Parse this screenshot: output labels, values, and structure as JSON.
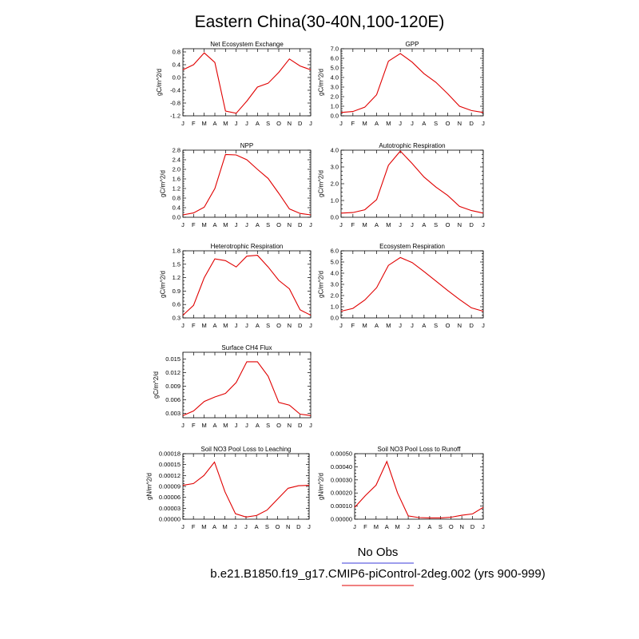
{
  "title": "Eastern China(30-40N,100-120E)",
  "legend": [
    {
      "label": "No Obs",
      "color": "#3b3bd8"
    },
    {
      "label": "b.e21.B1850.f19_g17.CMIP6-piControl-2deg.002 (yrs 900-999)",
      "color": "#e00000"
    }
  ],
  "chart_data": [
    {
      "type": "line",
      "title": "Net Ecosystem Exchange",
      "ylabel": "gC/m^2/d",
      "ylim": [
        -1.2,
        0.9
      ],
      "yticks": [
        "-1.2",
        "-0.8",
        "-0.4",
        "0.0",
        "0.4",
        "0.8"
      ],
      "ytick_values": [
        -1.2,
        -0.8,
        -0.4,
        0.0,
        0.4,
        0.8
      ],
      "categories": [
        "J",
        "F",
        "M",
        "A",
        "M",
        "J",
        "J",
        "A",
        "S",
        "O",
        "N",
        "D",
        "J"
      ],
      "values": [
        0.24,
        0.4,
        0.77,
        0.47,
        -1.05,
        -1.12,
        -0.74,
        -0.3,
        -0.18,
        0.16,
        0.58,
        0.36,
        0.24
      ],
      "color": "#e00000"
    },
    {
      "type": "line",
      "title": "GPP",
      "ylabel": "gC/m^2/d",
      "ylim": [
        0.0,
        7.0
      ],
      "yticks": [
        "0.0",
        "1.0",
        "2.0",
        "3.0",
        "4.0",
        "5.0",
        "6.0",
        "7.0"
      ],
      "ytick_values": [
        0,
        1,
        2,
        3,
        4,
        5,
        6,
        7
      ],
      "categories": [
        "J",
        "F",
        "M",
        "A",
        "M",
        "J",
        "J",
        "A",
        "S",
        "O",
        "N",
        "D",
        "J"
      ],
      "values": [
        0.35,
        0.45,
        0.9,
        2.2,
        5.7,
        6.5,
        5.6,
        4.4,
        3.5,
        2.3,
        1.0,
        0.55,
        0.35
      ],
      "color": "#e00000"
    },
    {
      "type": "line",
      "title": "NPP",
      "ylabel": "gC/m^2/d",
      "ylim": [
        0.0,
        2.8
      ],
      "yticks": [
        "0.0",
        "0.4",
        "0.8",
        "1.2",
        "1.6",
        "2.0",
        "2.4",
        "2.8"
      ],
      "ytick_values": [
        0,
        0.4,
        0.8,
        1.2,
        1.6,
        2.0,
        2.4,
        2.8
      ],
      "categories": [
        "J",
        "F",
        "M",
        "A",
        "M",
        "J",
        "J",
        "A",
        "S",
        "O",
        "N",
        "D",
        "J"
      ],
      "values": [
        0.1,
        0.18,
        0.42,
        1.2,
        2.62,
        2.6,
        2.4,
        2.0,
        1.62,
        1.0,
        0.35,
        0.16,
        0.1
      ],
      "color": "#e00000"
    },
    {
      "type": "line",
      "title": "Autotrophic Respiration",
      "ylabel": "gC/m^2/d",
      "ylim": [
        0.0,
        4.0
      ],
      "yticks": [
        "0.0",
        "1.0",
        "2.0",
        "3.0",
        "4.0"
      ],
      "ytick_values": [
        0,
        1,
        2,
        3,
        4
      ],
      "categories": [
        "J",
        "F",
        "M",
        "A",
        "M",
        "J",
        "J",
        "A",
        "S",
        "O",
        "N",
        "D",
        "J"
      ],
      "values": [
        0.25,
        0.28,
        0.45,
        1.05,
        3.1,
        3.95,
        3.2,
        2.4,
        1.8,
        1.3,
        0.65,
        0.4,
        0.25
      ],
      "color": "#e00000"
    },
    {
      "type": "line",
      "title": "Heterotrophic Respiration",
      "ylabel": "gC/m^2/d",
      "ylim": [
        0.3,
        1.8
      ],
      "yticks": [
        "0.3",
        "0.6",
        "0.9",
        "1.2",
        "1.5",
        "1.8"
      ],
      "ytick_values": [
        0.3,
        0.6,
        0.9,
        1.2,
        1.5,
        1.8
      ],
      "categories": [
        "J",
        "F",
        "M",
        "A",
        "M",
        "J",
        "J",
        "A",
        "S",
        "O",
        "N",
        "D",
        "J"
      ],
      "values": [
        0.36,
        0.58,
        1.2,
        1.62,
        1.58,
        1.44,
        1.68,
        1.7,
        1.44,
        1.14,
        0.95,
        0.48,
        0.36
      ],
      "color": "#e00000"
    },
    {
      "type": "line",
      "title": "Ecosystem Respiration",
      "ylabel": "gC/m^2/d",
      "ylim": [
        0.0,
        6.0
      ],
      "yticks": [
        "0.0",
        "1.0",
        "2.0",
        "3.0",
        "4.0",
        "5.0",
        "6.0"
      ],
      "ytick_values": [
        0,
        1,
        2,
        3,
        4,
        5,
        6
      ],
      "categories": [
        "J",
        "F",
        "M",
        "A",
        "M",
        "J",
        "J",
        "A",
        "S",
        "O",
        "N",
        "D",
        "J"
      ],
      "values": [
        0.6,
        0.85,
        1.6,
        2.7,
        4.7,
        5.4,
        4.95,
        4.15,
        3.3,
        2.45,
        1.65,
        0.9,
        0.6
      ],
      "color": "#e00000"
    },
    {
      "type": "line",
      "title": "Surface CH4 Flux",
      "ylabel": "gC/m^2/d",
      "ylim": [
        0.002,
        0.0165
      ],
      "yticks": [
        "0.003",
        "0.006",
        "0.009",
        "0.012",
        "0.015"
      ],
      "ytick_values": [
        0.003,
        0.006,
        0.009,
        0.012,
        0.015
      ],
      "categories": [
        "J",
        "F",
        "M",
        "A",
        "M",
        "J",
        "J",
        "A",
        "S",
        "O",
        "N",
        "D",
        "J"
      ],
      "values": [
        0.0025,
        0.0035,
        0.0056,
        0.0066,
        0.0074,
        0.0098,
        0.0144,
        0.0144,
        0.0112,
        0.0054,
        0.0048,
        0.0028,
        0.0025
      ],
      "color": "#e00000"
    },
    {
      "type": "line",
      "title": "Soil NO3 Pool Loss to Leaching",
      "ylabel": "gN/m^2/d",
      "ylim": [
        0.0,
        0.00018
      ],
      "yticks": [
        "0.00000",
        "0.00003",
        "0.00006",
        "0.00009",
        "0.00012",
        "0.00015",
        "0.00018"
      ],
      "ytick_values": [
        0,
        3e-05,
        6e-05,
        9e-05,
        0.00012,
        0.00015,
        0.00018
      ],
      "categories": [
        "J",
        "F",
        "M",
        "A",
        "M",
        "J",
        "J",
        "A",
        "S",
        "O",
        "N",
        "D",
        "J"
      ],
      "values": [
        9.3e-05,
        9.8e-05,
        0.00012,
        0.000157,
        7.5e-05,
        1.5e-05,
        6e-06,
        1e-05,
        2.5e-05,
        5.5e-05,
        8.5e-05,
        9.2e-05,
        9.3e-05
      ],
      "color": "#e00000"
    },
    {
      "type": "line",
      "title": "Soil NO3 Pool Loss to Runoff",
      "ylabel": "gN/m^2/d",
      "ylim": [
        0.0,
        0.0005
      ],
      "yticks": [
        "0.00000",
        "0.00010",
        "0.00020",
        "0.00030",
        "0.00040",
        "0.00050"
      ],
      "ytick_values": [
        0,
        0.0001,
        0.0002,
        0.0003,
        0.0004,
        0.0005
      ],
      "categories": [
        "J",
        "F",
        "M",
        "A",
        "M",
        "J",
        "J",
        "A",
        "S",
        "O",
        "N",
        "D",
        "J"
      ],
      "values": [
        9e-05,
        0.00018,
        0.00026,
        0.00044,
        0.0002,
        2.5e-05,
        1.2e-05,
        1e-05,
        1e-05,
        1.5e-05,
        3e-05,
        4e-05,
        9e-05
      ],
      "color": "#e00000"
    }
  ]
}
